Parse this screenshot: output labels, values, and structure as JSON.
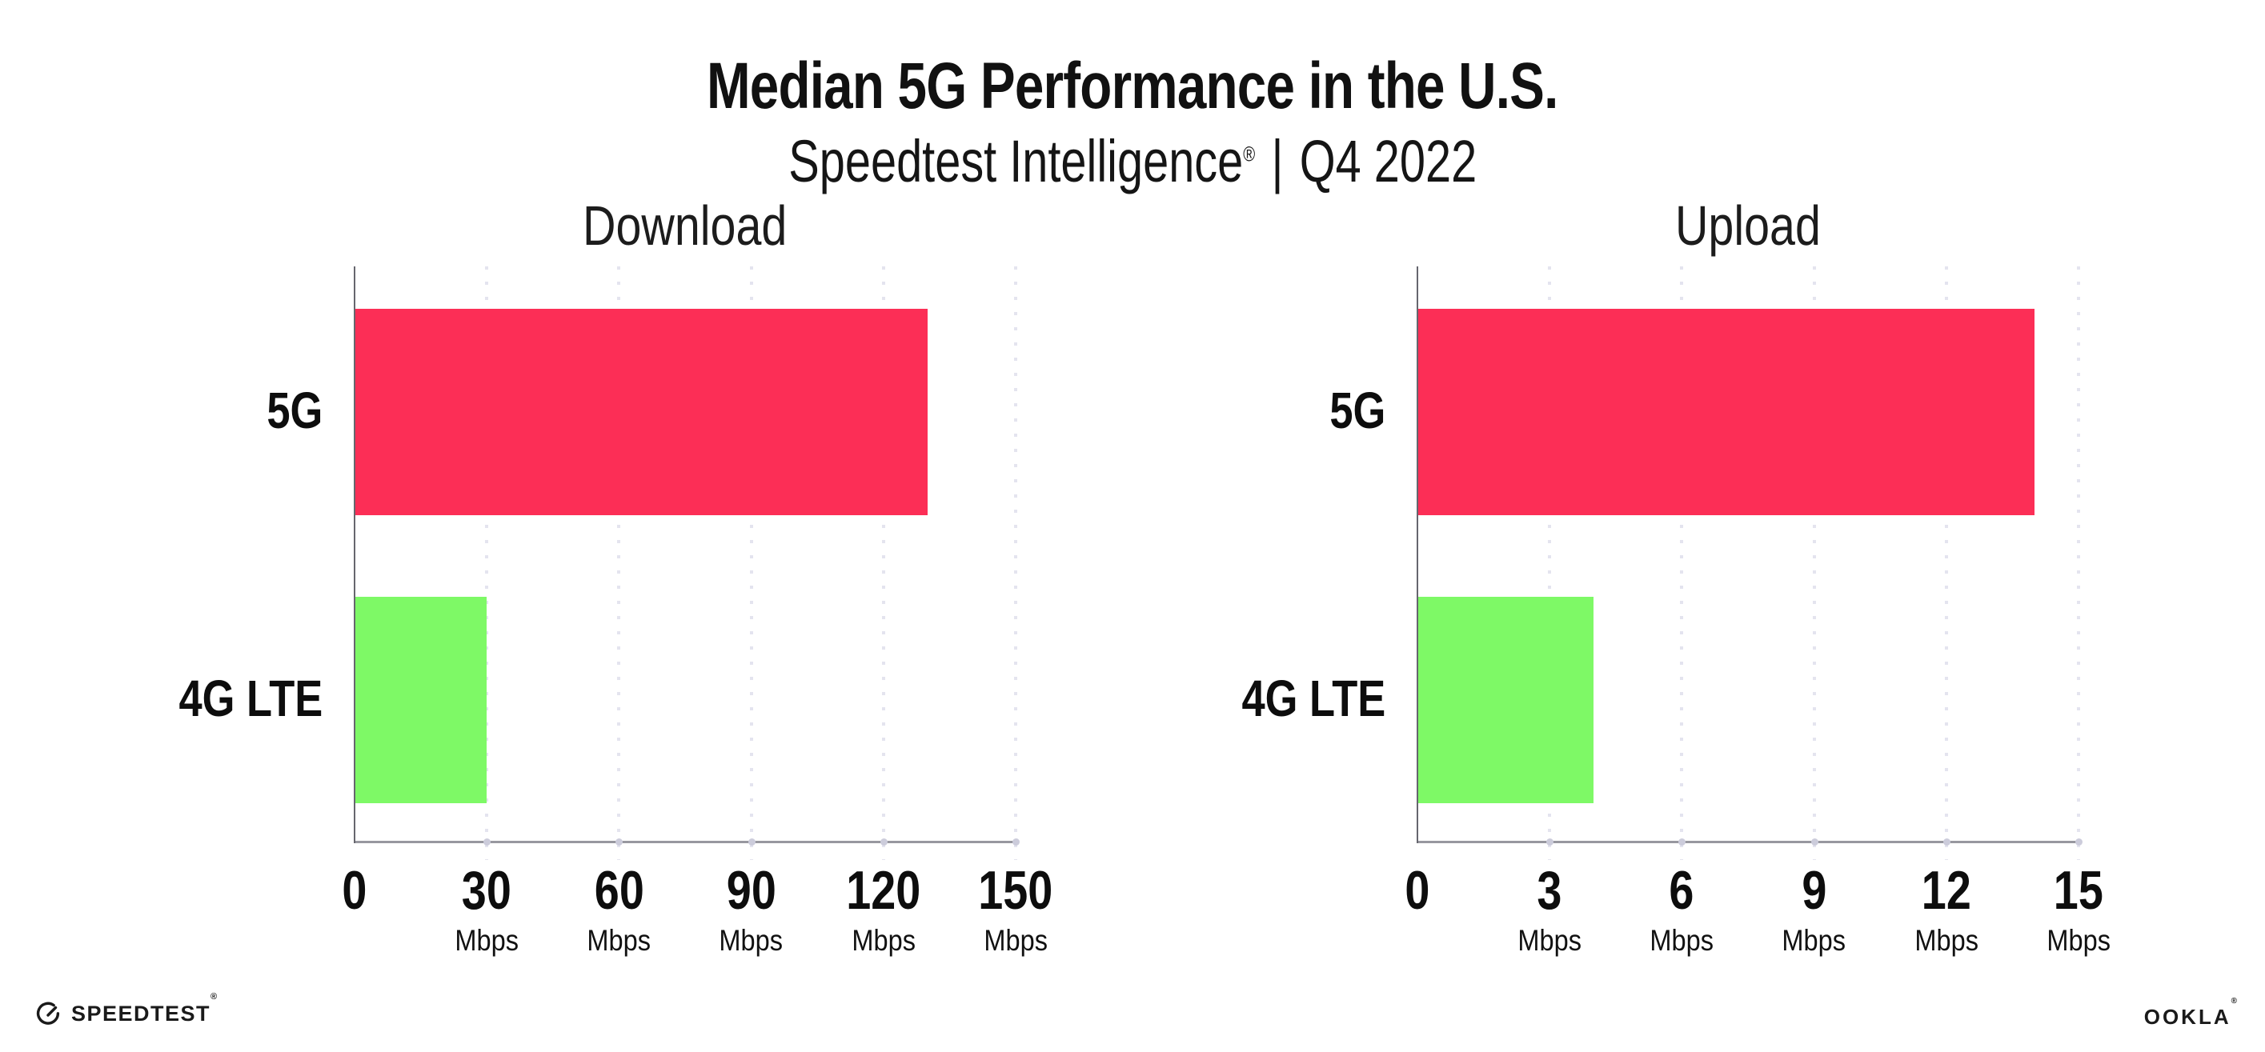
{
  "header": {
    "title": "Median 5G Performance in the U.S.",
    "subtitle_brand": "Speedtest Intelligence",
    "subtitle_reg": "®",
    "subtitle_sep": "|",
    "subtitle_period": "Q4 2022"
  },
  "chart_data": [
    {
      "type": "bar",
      "orientation": "horizontal",
      "title": "Download",
      "categories": [
        "5G",
        "4G LTE"
      ],
      "values": [
        130,
        30
      ],
      "unit": "Mbps",
      "xlim": [
        0,
        150
      ],
      "xticks": [
        0,
        30,
        60,
        90,
        120,
        150
      ],
      "grid": "dotted-vertical",
      "legend": "none",
      "bar_colors": [
        "#fc2e56",
        "#7ef966"
      ]
    },
    {
      "type": "bar",
      "orientation": "horizontal",
      "title": "Upload",
      "categories": [
        "5G",
        "4G LTE"
      ],
      "values": [
        14,
        4
      ],
      "unit": "Mbps",
      "xlim": [
        0,
        15
      ],
      "xticks": [
        0,
        3,
        6,
        9,
        12,
        15
      ],
      "grid": "dotted-vertical",
      "legend": "none",
      "bar_colors": [
        "#fc2e56",
        "#7ef966"
      ]
    }
  ],
  "colors": {
    "bar_5g": "#fc2e56",
    "bar_4g_lte": "#7ef966",
    "gridline": "#e4e4ef",
    "x_axis": "#98989f",
    "y_axis": "#66666e",
    "text": "#111111",
    "background": "#ffffff"
  },
  "footer": {
    "speedtest_label": "SPEEDTEST",
    "speedtest_reg": "®",
    "ookla_label": "OOKLA",
    "ookla_reg": "®"
  }
}
